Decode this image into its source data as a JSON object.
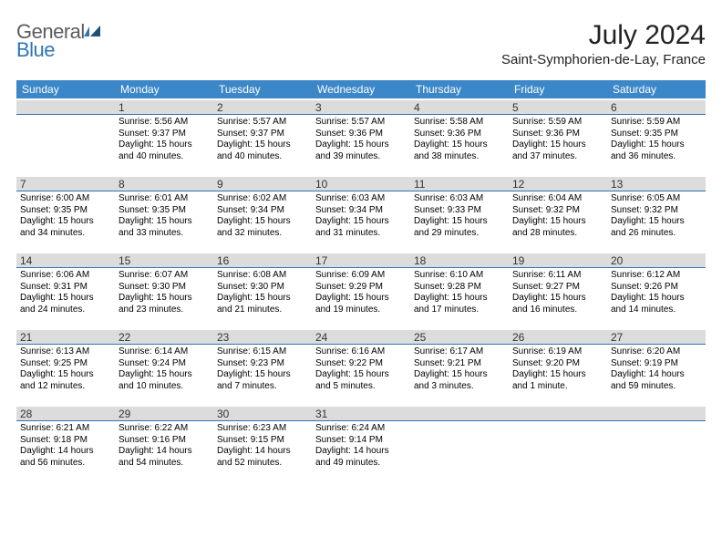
{
  "logo": {
    "general": "General",
    "blue": "Blue"
  },
  "title": "July 2024",
  "location": "Saint-Symphorien-de-Lay, France",
  "weekday_header_bg": "#3b87c8",
  "daynum_bg": "#dcdcdc",
  "daynum_border": "#2e75b6",
  "weekdays": [
    "Sunday",
    "Monday",
    "Tuesday",
    "Wednesday",
    "Thursday",
    "Friday",
    "Saturday"
  ],
  "weeks": [
    [
      {
        "n": "",
        "lines": [
          "",
          "",
          "",
          ""
        ]
      },
      {
        "n": "1",
        "lines": [
          "Sunrise: 5:56 AM",
          "Sunset: 9:37 PM",
          "Daylight: 15 hours",
          "and 40 minutes."
        ]
      },
      {
        "n": "2",
        "lines": [
          "Sunrise: 5:57 AM",
          "Sunset: 9:37 PM",
          "Daylight: 15 hours",
          "and 40 minutes."
        ]
      },
      {
        "n": "3",
        "lines": [
          "Sunrise: 5:57 AM",
          "Sunset: 9:36 PM",
          "Daylight: 15 hours",
          "and 39 minutes."
        ]
      },
      {
        "n": "4",
        "lines": [
          "Sunrise: 5:58 AM",
          "Sunset: 9:36 PM",
          "Daylight: 15 hours",
          "and 38 minutes."
        ]
      },
      {
        "n": "5",
        "lines": [
          "Sunrise: 5:59 AM",
          "Sunset: 9:36 PM",
          "Daylight: 15 hours",
          "and 37 minutes."
        ]
      },
      {
        "n": "6",
        "lines": [
          "Sunrise: 5:59 AM",
          "Sunset: 9:35 PM",
          "Daylight: 15 hours",
          "and 36 minutes."
        ]
      }
    ],
    [
      {
        "n": "7",
        "lines": [
          "Sunrise: 6:00 AM",
          "Sunset: 9:35 PM",
          "Daylight: 15 hours",
          "and 34 minutes."
        ]
      },
      {
        "n": "8",
        "lines": [
          "Sunrise: 6:01 AM",
          "Sunset: 9:35 PM",
          "Daylight: 15 hours",
          "and 33 minutes."
        ]
      },
      {
        "n": "9",
        "lines": [
          "Sunrise: 6:02 AM",
          "Sunset: 9:34 PM",
          "Daylight: 15 hours",
          "and 32 minutes."
        ]
      },
      {
        "n": "10",
        "lines": [
          "Sunrise: 6:03 AM",
          "Sunset: 9:34 PM",
          "Daylight: 15 hours",
          "and 31 minutes."
        ]
      },
      {
        "n": "11",
        "lines": [
          "Sunrise: 6:03 AM",
          "Sunset: 9:33 PM",
          "Daylight: 15 hours",
          "and 29 minutes."
        ]
      },
      {
        "n": "12",
        "lines": [
          "Sunrise: 6:04 AM",
          "Sunset: 9:32 PM",
          "Daylight: 15 hours",
          "and 28 minutes."
        ]
      },
      {
        "n": "13",
        "lines": [
          "Sunrise: 6:05 AM",
          "Sunset: 9:32 PM",
          "Daylight: 15 hours",
          "and 26 minutes."
        ]
      }
    ],
    [
      {
        "n": "14",
        "lines": [
          "Sunrise: 6:06 AM",
          "Sunset: 9:31 PM",
          "Daylight: 15 hours",
          "and 24 minutes."
        ]
      },
      {
        "n": "15",
        "lines": [
          "Sunrise: 6:07 AM",
          "Sunset: 9:30 PM",
          "Daylight: 15 hours",
          "and 23 minutes."
        ]
      },
      {
        "n": "16",
        "lines": [
          "Sunrise: 6:08 AM",
          "Sunset: 9:30 PM",
          "Daylight: 15 hours",
          "and 21 minutes."
        ]
      },
      {
        "n": "17",
        "lines": [
          "Sunrise: 6:09 AM",
          "Sunset: 9:29 PM",
          "Daylight: 15 hours",
          "and 19 minutes."
        ]
      },
      {
        "n": "18",
        "lines": [
          "Sunrise: 6:10 AM",
          "Sunset: 9:28 PM",
          "Daylight: 15 hours",
          "and 17 minutes."
        ]
      },
      {
        "n": "19",
        "lines": [
          "Sunrise: 6:11 AM",
          "Sunset: 9:27 PM",
          "Daylight: 15 hours",
          "and 16 minutes."
        ]
      },
      {
        "n": "20",
        "lines": [
          "Sunrise: 6:12 AM",
          "Sunset: 9:26 PM",
          "Daylight: 15 hours",
          "and 14 minutes."
        ]
      }
    ],
    [
      {
        "n": "21",
        "lines": [
          "Sunrise: 6:13 AM",
          "Sunset: 9:25 PM",
          "Daylight: 15 hours",
          "and 12 minutes."
        ]
      },
      {
        "n": "22",
        "lines": [
          "Sunrise: 6:14 AM",
          "Sunset: 9:24 PM",
          "Daylight: 15 hours",
          "and 10 minutes."
        ]
      },
      {
        "n": "23",
        "lines": [
          "Sunrise: 6:15 AM",
          "Sunset: 9:23 PM",
          "Daylight: 15 hours",
          "and 7 minutes."
        ]
      },
      {
        "n": "24",
        "lines": [
          "Sunrise: 6:16 AM",
          "Sunset: 9:22 PM",
          "Daylight: 15 hours",
          "and 5 minutes."
        ]
      },
      {
        "n": "25",
        "lines": [
          "Sunrise: 6:17 AM",
          "Sunset: 9:21 PM",
          "Daylight: 15 hours",
          "and 3 minutes."
        ]
      },
      {
        "n": "26",
        "lines": [
          "Sunrise: 6:19 AM",
          "Sunset: 9:20 PM",
          "Daylight: 15 hours",
          "and 1 minute."
        ]
      },
      {
        "n": "27",
        "lines": [
          "Sunrise: 6:20 AM",
          "Sunset: 9:19 PM",
          "Daylight: 14 hours",
          "and 59 minutes."
        ]
      }
    ],
    [
      {
        "n": "28",
        "lines": [
          "Sunrise: 6:21 AM",
          "Sunset: 9:18 PM",
          "Daylight: 14 hours",
          "and 56 minutes."
        ]
      },
      {
        "n": "29",
        "lines": [
          "Sunrise: 6:22 AM",
          "Sunset: 9:16 PM",
          "Daylight: 14 hours",
          "and 54 minutes."
        ]
      },
      {
        "n": "30",
        "lines": [
          "Sunrise: 6:23 AM",
          "Sunset: 9:15 PM",
          "Daylight: 14 hours",
          "and 52 minutes."
        ]
      },
      {
        "n": "31",
        "lines": [
          "Sunrise: 6:24 AM",
          "Sunset: 9:14 PM",
          "Daylight: 14 hours",
          "and 49 minutes."
        ]
      },
      {
        "n": "",
        "lines": [
          "",
          "",
          "",
          ""
        ]
      },
      {
        "n": "",
        "lines": [
          "",
          "",
          "",
          ""
        ]
      },
      {
        "n": "",
        "lines": [
          "",
          "",
          "",
          ""
        ]
      }
    ]
  ]
}
